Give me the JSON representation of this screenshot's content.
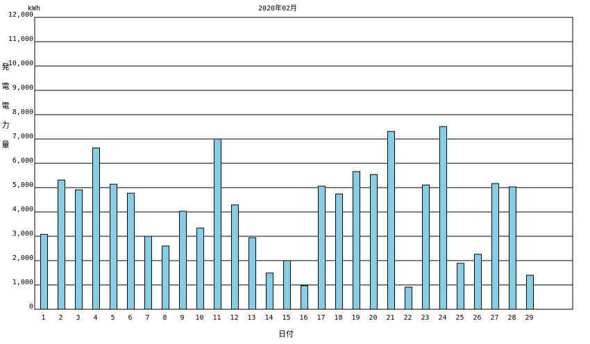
{
  "chart_data": {
    "type": "bar",
    "title": "2020年02月",
    "unit": "kWh",
    "y_label": "発電電力量",
    "x_label": "日付",
    "categories": [
      "1",
      "2",
      "3",
      "4",
      "5",
      "6",
      "7",
      "8",
      "9",
      "10",
      "11",
      "12",
      "13",
      "14",
      "15",
      "16",
      "17",
      "18",
      "19",
      "20",
      "21",
      "22",
      "23",
      "24",
      "25",
      "26",
      "27",
      "28",
      "29",
      null,
      null
    ],
    "values": [
      3080,
      5310,
      4910,
      6630,
      5140,
      4770,
      3000,
      2600,
      4030,
      3340,
      7000,
      4290,
      2940,
      1490,
      2000,
      970,
      5060,
      4740,
      5660,
      5540,
      7310,
      910,
      5110,
      7510,
      1890,
      2260,
      5170,
      5030,
      1400,
      null,
      null
    ],
    "color": "#87cde6",
    "ylim": [
      0,
      12000
    ],
    "yticks": [
      0,
      {
        "value": 1000,
        "label": "1,000"
      },
      {
        "value": 2000,
        "label": "2,000"
      },
      {
        "value": 3000,
        "label": "3,000"
      },
      {
        "value": 4000,
        "label": "4,000"
      },
      {
        "value": 5000,
        "label": "5,000"
      },
      {
        "value": 6000,
        "label": "6,000"
      },
      {
        "value": 7000,
        "label": "7,000"
      },
      {
        "value": 8000,
        "label": "8,000"
      },
      {
        "value": 9000,
        "label": "9,000"
      },
      {
        "value": 10000,
        "label": "10,000"
      },
      {
        "value": 11000,
        "label": "11,000"
      },
      {
        "value": 12000,
        "label": "12,000"
      }
    ],
    "grid": true
  }
}
